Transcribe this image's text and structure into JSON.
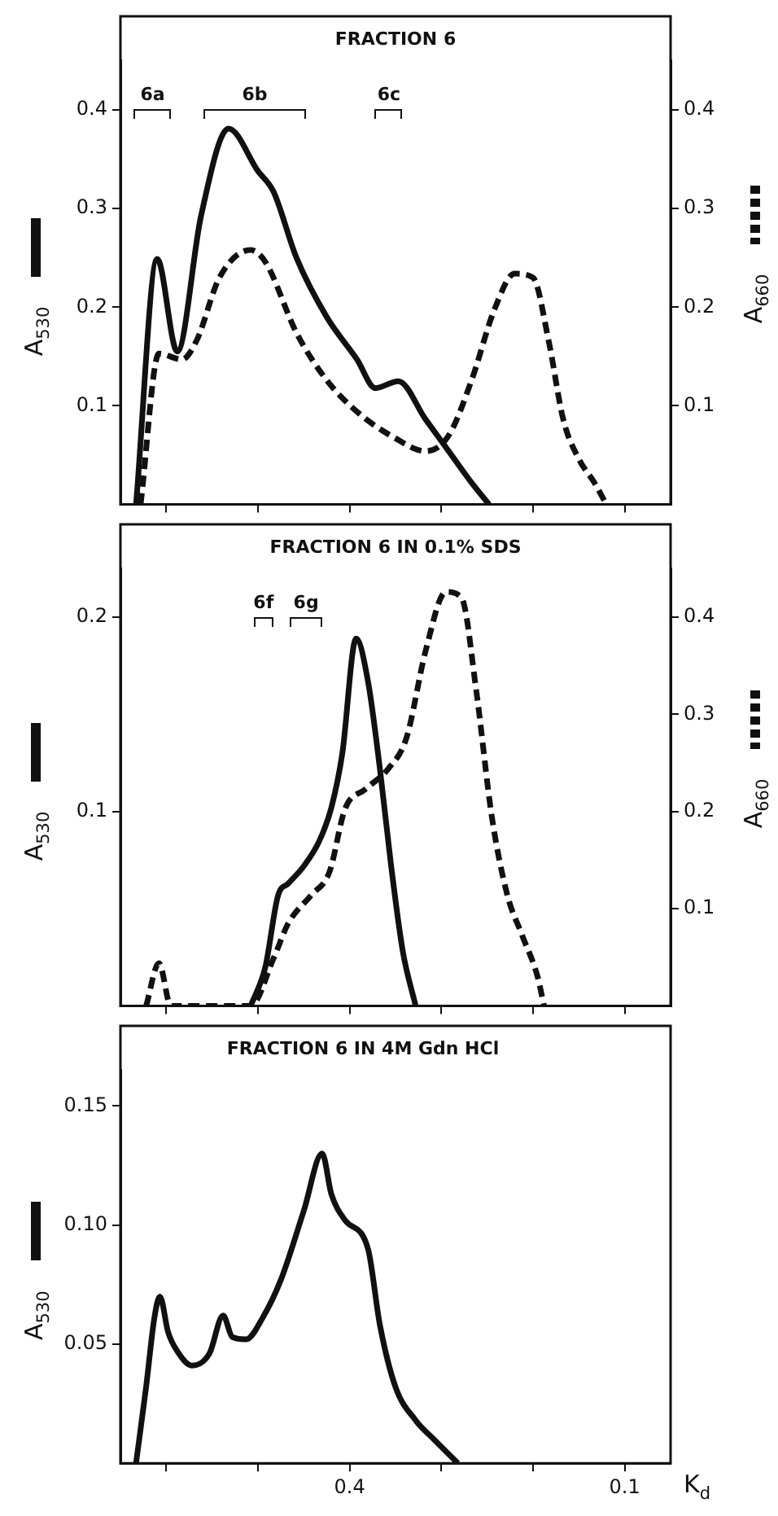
{
  "chart_data": [
    {
      "type": "line",
      "title": "FRACTION 6",
      "ylabel": "A$_{530}$",
      "y2label": "A$_{660}$",
      "xlim": [
        0.65,
        0.05
      ],
      "xticks": [
        {
          "value": 0.6,
          "label": null
        },
        {
          "value": 0.5,
          "label": null
        },
        {
          "value": 0.4,
          "label": null
        },
        {
          "value": 0.3,
          "label": null
        },
        {
          "value": 0.2,
          "label": null
        },
        {
          "value": 0.1,
          "label": null
        }
      ],
      "ylim": [
        0,
        0.45
      ],
      "yticks": [
        0.1,
        0.2,
        0.3,
        0.4
      ],
      "y2lim": [
        0,
        0.45
      ],
      "y2ticks": [
        0.1,
        0.2,
        0.3,
        0.4
      ],
      "tick_labels": "y",
      "grid": false,
      "legend": false,
      "marker": "none",
      "annotations": [
        "6a",
        "6b",
        "6c"
      ],
      "series": [
        {
          "color": "#111111",
          "line_style": "solid",
          "x": [
            0.633,
            0.61,
            0.588,
            0.562,
            0.532,
            0.5,
            0.483,
            0.458,
            0.425,
            0.392,
            0.372,
            0.347,
            0.317,
            0.292,
            0.267,
            0.248
          ],
          "values": [
            0,
            0.249,
            0.155,
            0.293,
            0.381,
            0.338,
            0.317,
            0.25,
            0.19,
            0.147,
            0.118,
            0.125,
            0.086,
            0.054,
            0.022,
            0
          ]
        },
        {
          "color": "#111111",
          "line_style": "dashed",
          "axis": "y2",
          "x": [
            0.628,
            0.608,
            0.583,
            0.567,
            0.542,
            0.508,
            0.492,
            0.458,
            0.425,
            0.392,
            0.35,
            0.317,
            0.292,
            0.267,
            0.242,
            0.22,
            0.2,
            0.183,
            0.167,
            0.15,
            0.133,
            0.12
          ],
          "values": [
            0,
            0.153,
            0.147,
            0.166,
            0.23,
            0.258,
            0.246,
            0.174,
            0.126,
            0.094,
            0.067,
            0.054,
            0.07,
            0.126,
            0.198,
            0.234,
            0.23,
            0.166,
            0.086,
            0.046,
            0.022,
            0
          ]
        }
      ]
    },
    {
      "type": "line",
      "title": "FRACTION 6 IN 0.1% SDS",
      "ylabel": "A$_{530}$",
      "y2label": "A$_{660}$",
      "xlim": [
        0.65,
        0.05
      ],
      "xticks": [
        {
          "value": 0.6,
          "label": null
        },
        {
          "value": 0.5,
          "label": null
        },
        {
          "value": 0.4,
          "label": null
        },
        {
          "value": 0.3,
          "label": null
        },
        {
          "value": 0.2,
          "label": null
        },
        {
          "value": 0.1,
          "label": null
        }
      ],
      "ylim": [
        0,
        0.225
      ],
      "yticks": [
        0.1,
        0.2
      ],
      "y2lim": [
        0,
        0.45
      ],
      "y2ticks": [
        0.1,
        0.2,
        0.3,
        0.4
      ],
      "tick_labels": "y",
      "grid": false,
      "legend": false,
      "marker": "none",
      "annotations": [
        "6f",
        "6g"
      ],
      "series": [
        {
          "color": "#111111",
          "line_style": "solid",
          "x": [
            0.508,
            0.492,
            0.478,
            0.467,
            0.45,
            0.433,
            0.42,
            0.408,
            0.393,
            0.38,
            0.367,
            0.355,
            0.342,
            0.328
          ],
          "values": [
            0,
            0.02,
            0.057,
            0.063,
            0.072,
            0.085,
            0.102,
            0.13,
            0.189,
            0.167,
            0.122,
            0.073,
            0.028,
            0
          ]
        },
        {
          "color": "#111111",
          "line_style": "dashed",
          "axis": "y2",
          "x": [
            0.622,
            0.608,
            0.595,
            0.508,
            0.483,
            0.467,
            0.442,
            0.422,
            0.405,
            0.383,
            0.358,
            0.338,
            0.317,
            0.295,
            0.278,
            0.262,
            0.245,
            0.228,
            0.212,
            0.195,
            0.188
          ],
          "values": [
            0,
            0.044,
            0,
            0,
            0.049,
            0.085,
            0.114,
            0.138,
            0.203,
            0.223,
            0.244,
            0.276,
            0.366,
            0.426,
            0.42,
            0.325,
            0.195,
            0.114,
            0.073,
            0.03,
            0
          ]
        }
      ]
    },
    {
      "type": "line",
      "title": "FRACTION 6 IN 4M Gdn HCl",
      "ylabel": "A$_{530}$",
      "xlabel": "K$_{d}$",
      "xlim": [
        0.65,
        0.05
      ],
      "xticks": [
        {
          "value": 0.6,
          "label": null
        },
        {
          "value": 0.5,
          "label": null
        },
        0.4,
        {
          "value": 0.3,
          "label": null
        },
        {
          "value": 0.2,
          "label": null
        },
        0.1
      ],
      "ylim": [
        0,
        0.165
      ],
      "yticks": [
        0.05,
        {
          "value": 0.1,
          "label": "0.10"
        },
        0.15
      ],
      "grid": false,
      "legend": false,
      "marker": "none",
      "series": [
        {
          "color": "#111111",
          "line_style": "solid",
          "x": [
            0.633,
            0.622,
            0.613,
            0.607,
            0.598,
            0.588,
            0.572,
            0.553,
            0.538,
            0.528,
            0.513,
            0.495,
            0.475,
            0.45,
            0.43,
            0.42,
            0.405,
            0.38,
            0.367,
            0.35,
            0.328,
            0.308,
            0.282
          ],
          "values": [
            0,
            0.032,
            0.061,
            0.07,
            0.055,
            0.047,
            0.041,
            0.046,
            0.062,
            0.053,
            0.052,
            0.061,
            0.077,
            0.106,
            0.13,
            0.113,
            0.102,
            0.09,
            0.058,
            0.032,
            0.018,
            0.01,
            0
          ]
        }
      ]
    }
  ]
}
